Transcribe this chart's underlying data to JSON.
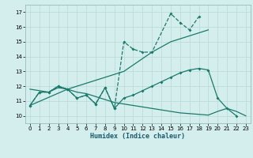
{
  "title": "",
  "xlabel": "Humidex (Indice chaleur)",
  "bg_color": "#d4eeee",
  "line_color": "#1a7a6a",
  "xlim": [
    -0.5,
    23.5
  ],
  "ylim": [
    9.5,
    17.5
  ],
  "xticks": [
    0,
    1,
    2,
    3,
    4,
    5,
    6,
    7,
    8,
    9,
    10,
    11,
    12,
    13,
    14,
    15,
    16,
    17,
    18,
    19,
    20,
    21,
    22,
    23
  ],
  "yticks": [
    10,
    11,
    12,
    13,
    14,
    15,
    16,
    17
  ],
  "series_A_x": [
    0,
    1,
    2,
    3,
    4,
    5,
    6,
    7,
    8,
    9,
    10,
    11,
    12,
    13,
    15,
    16,
    17,
    18
  ],
  "series_A_y": [
    10.7,
    11.6,
    11.6,
    12.0,
    11.8,
    11.2,
    11.4,
    10.8,
    11.9,
    10.5,
    15.0,
    14.5,
    14.3,
    14.3,
    16.9,
    16.3,
    15.8,
    16.7
  ],
  "series_B_x": [
    0,
    4,
    10,
    13,
    15,
    19
  ],
  "series_B_y": [
    10.7,
    11.8,
    13.0,
    14.3,
    15.0,
    15.8
  ],
  "series_C_x": [
    0,
    1,
    2,
    3,
    4,
    5,
    6,
    7,
    8,
    9,
    10,
    11,
    12,
    13,
    14,
    15,
    16,
    17,
    18,
    19,
    20,
    21,
    22
  ],
  "series_C_y": [
    10.7,
    11.6,
    11.6,
    12.0,
    11.8,
    11.2,
    11.4,
    10.8,
    11.9,
    10.5,
    11.2,
    11.4,
    11.7,
    12.0,
    12.3,
    12.6,
    12.9,
    13.1,
    13.2,
    13.1,
    11.2,
    10.5,
    10.0
  ],
  "series_D_x": [
    0,
    1,
    2,
    3,
    4,
    5,
    6,
    7,
    8,
    9,
    10,
    11,
    12,
    13,
    14,
    15,
    16,
    17,
    18,
    19,
    20,
    21,
    22,
    23
  ],
  "series_D_y": [
    11.8,
    11.7,
    11.6,
    11.9,
    11.8,
    11.6,
    11.5,
    11.3,
    11.1,
    10.9,
    10.8,
    10.7,
    10.6,
    10.5,
    10.4,
    10.3,
    10.2,
    10.15,
    10.1,
    10.05,
    10.3,
    10.5,
    10.3,
    10.0
  ]
}
